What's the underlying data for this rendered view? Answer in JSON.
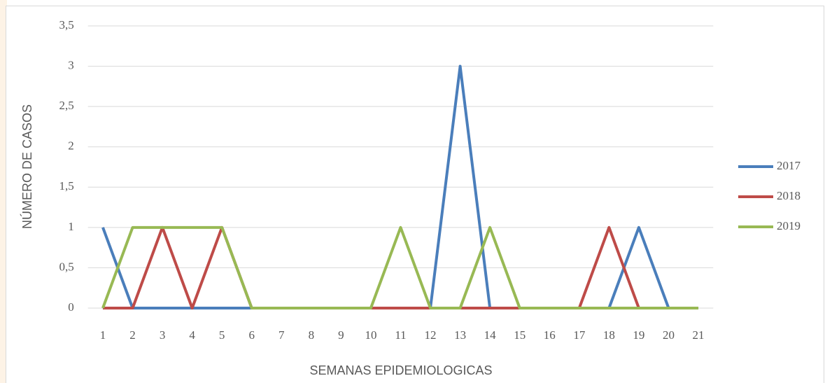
{
  "chart_data": {
    "type": "line",
    "x_label": "SEMANAS EPIDEMIOLOGICAS",
    "y_label": "NÚMERO DE CASOS",
    "categories": [
      "1",
      "2",
      "3",
      "4",
      "5",
      "6",
      "7",
      "8",
      "9",
      "10",
      "11",
      "12",
      "13",
      "14",
      "15",
      "16",
      "17",
      "18",
      "19",
      "20",
      "21"
    ],
    "series": [
      {
        "name": "2017",
        "color": "#4a7ebb",
        "values": [
          1,
          0,
          0,
          0,
          0,
          0,
          0,
          0,
          0,
          0,
          0,
          0,
          3,
          0,
          0,
          0,
          0,
          0,
          1,
          0,
          0
        ]
      },
      {
        "name": "2018",
        "color": "#be4b48",
        "values": [
          0,
          0,
          1,
          0,
          1,
          0,
          0,
          0,
          0,
          0,
          0,
          0,
          0,
          0,
          0,
          0,
          0,
          1,
          0,
          0,
          0
        ]
      },
      {
        "name": "2019",
        "color": "#98b954",
        "values": [
          0,
          1,
          1,
          1,
          1,
          0,
          0,
          0,
          0,
          0,
          1,
          0,
          0,
          1,
          0,
          0,
          0,
          0,
          0,
          0,
          0
        ]
      }
    ],
    "ylim": [
      0,
      3.5
    ],
    "yticks": [
      0,
      {
        "value": 0.5,
        "label": "0,5"
      },
      1,
      {
        "value": 1.5,
        "label": "1,5"
      },
      2,
      {
        "value": 2.5,
        "label": "2,5"
      },
      3,
      {
        "value": 3.5,
        "label": "3,5"
      }
    ],
    "grid": true,
    "legend": "right"
  }
}
